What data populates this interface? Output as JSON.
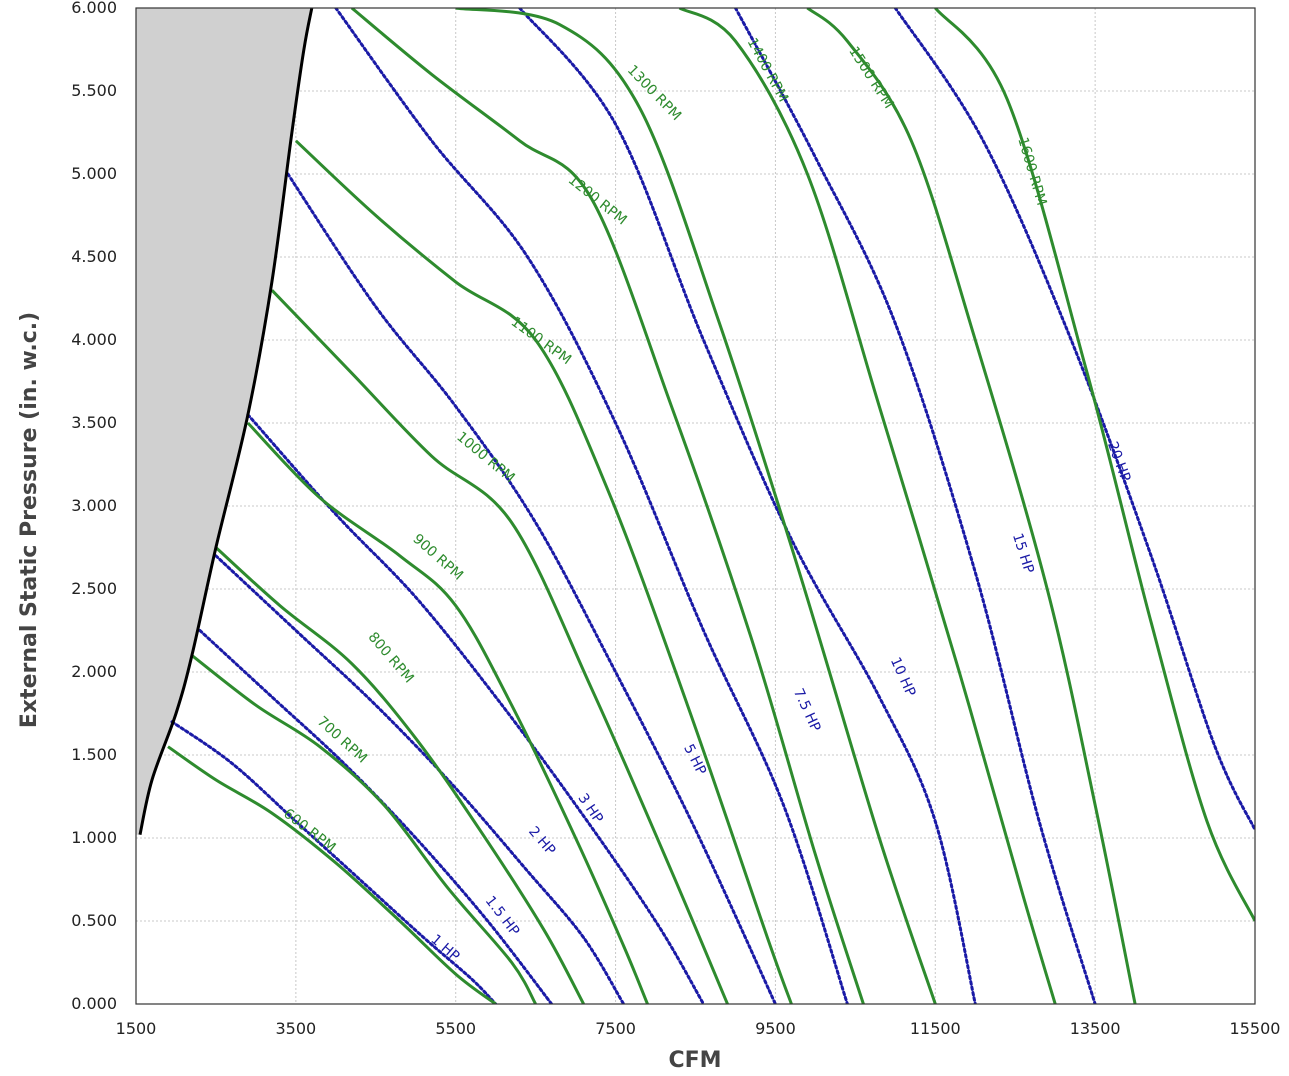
{
  "chart_data": {
    "type": "line",
    "title": "",
    "xlabel": "CFM",
    "ylabel": "External Static Pressure (in. w.c.)",
    "xlim": [
      1500,
      15500
    ],
    "ylim": [
      0,
      6
    ],
    "grid": true,
    "x_ticks": [
      "1500",
      "3500",
      "5500",
      "7500",
      "9500",
      "11500",
      "13500",
      "15500"
    ],
    "y_ticks": [
      "0.000",
      "0.500",
      "1.000",
      "1.500",
      "2.000",
      "2.500",
      "3.000",
      "3.500",
      "4.000",
      "4.500",
      "5.000",
      "5.500",
      "6.000"
    ],
    "colors": {
      "rpm": "#2e8b2e",
      "hp": "#1a1aa6",
      "limit": "#000000",
      "region": "#d0d0d0",
      "grid": "#c8c8c8"
    },
    "limit_curve": [
      [
        1550,
        1.02
      ],
      [
        1700,
        1.35
      ],
      [
        2000,
        1.75
      ],
      [
        2200,
        2.1
      ],
      [
        2500,
        2.75
      ],
      [
        2900,
        3.55
      ],
      [
        3200,
        4.35
      ],
      [
        3450,
        5.25
      ],
      [
        3600,
        5.75
      ],
      [
        3700,
        6.0
      ]
    ],
    "rpm_curves": [
      {
        "label": "600 RPM",
        "points": [
          [
            1900,
            1.55
          ],
          [
            2500,
            1.35
          ],
          [
            3200,
            1.15
          ],
          [
            4000,
            0.85
          ],
          [
            4800,
            0.5
          ],
          [
            5500,
            0.18
          ],
          [
            6000,
            0.0
          ]
        ],
        "label_at": [
          3600,
          1.0
        ]
      },
      {
        "label": "700 RPM",
        "points": [
          [
            2200,
            2.1
          ],
          [
            3000,
            1.8
          ],
          [
            3800,
            1.55
          ],
          [
            4600,
            1.2
          ],
          [
            5400,
            0.7
          ],
          [
            6200,
            0.25
          ],
          [
            6500,
            0.0
          ]
        ],
        "label_at": [
          4000,
          1.55
        ]
      },
      {
        "label": "800 RPM",
        "points": [
          [
            2500,
            2.75
          ],
          [
            3300,
            2.4
          ],
          [
            4200,
            2.05
          ],
          [
            5000,
            1.6
          ],
          [
            5800,
            1.05
          ],
          [
            6600,
            0.45
          ],
          [
            7100,
            0.0
          ]
        ],
        "label_at": [
          4600,
          2.05
        ]
      },
      {
        "label": "900 RPM",
        "points": [
          [
            2900,
            3.5
          ],
          [
            3800,
            3.05
          ],
          [
            4800,
            2.7
          ],
          [
            5500,
            2.4
          ],
          [
            6200,
            1.8
          ],
          [
            7000,
            1.0
          ],
          [
            7600,
            0.35
          ],
          [
            7900,
            0.0
          ]
        ],
        "label_at": [
          5200,
          2.65
        ]
      },
      {
        "label": "1000 RPM",
        "points": [
          [
            3200,
            4.3
          ],
          [
            4200,
            3.8
          ],
          [
            5200,
            3.3
          ],
          [
            6200,
            2.9
          ],
          [
            7200,
            1.9
          ],
          [
            8200,
            0.8
          ],
          [
            8900,
            0.0
          ]
        ],
        "label_at": [
          5800,
          3.25
        ]
      },
      {
        "label": "1100 RPM",
        "points": [
          [
            3500,
            5.2
          ],
          [
            4500,
            4.75
          ],
          [
            5500,
            4.35
          ],
          [
            6500,
            4.0
          ],
          [
            7400,
            3.1
          ],
          [
            8400,
            1.8
          ],
          [
            9400,
            0.4
          ],
          [
            9700,
            0.0
          ]
        ],
        "label_at": [
          6500,
          3.95
        ]
      },
      {
        "label": "1200 RPM",
        "points": [
          [
            4200,
            6.0
          ],
          [
            5200,
            5.6
          ],
          [
            6300,
            5.2
          ],
          [
            7200,
            4.85
          ],
          [
            8200,
            3.6
          ],
          [
            9200,
            2.2
          ],
          [
            10000,
            0.9
          ],
          [
            10600,
            0.0
          ]
        ],
        "label_at": [
          7200,
          4.8
        ]
      },
      {
        "label": "1300 RPM",
        "points": [
          [
            5500,
            6.0
          ],
          [
            6800,
            5.9
          ],
          [
            7800,
            5.4
          ],
          [
            8800,
            4.1
          ],
          [
            9800,
            2.6
          ],
          [
            10800,
            1.0
          ],
          [
            11500,
            0.0
          ]
        ],
        "label_at": [
          7900,
          5.45
        ]
      },
      {
        "label": "1400 RPM",
        "points": [
          [
            8300,
            6.0
          ],
          [
            9000,
            5.8
          ],
          [
            9900,
            5.0
          ],
          [
            10800,
            3.6
          ],
          [
            11800,
            2.0
          ],
          [
            12600,
            0.65
          ],
          [
            13000,
            0.0
          ]
        ],
        "label_at": [
          9300,
          5.6
        ]
      },
      {
        "label": "1500 RPM",
        "points": [
          [
            9900,
            6.0
          ],
          [
            10400,
            5.8
          ],
          [
            11200,
            5.2
          ],
          [
            12000,
            4.0
          ],
          [
            12900,
            2.5
          ],
          [
            13500,
            1.2
          ],
          [
            14000,
            0.0
          ]
        ],
        "label_at": [
          10600,
          5.55
        ]
      },
      {
        "label": "1600 RPM",
        "points": [
          [
            11500,
            6.0
          ],
          [
            12400,
            5.45
          ],
          [
            13400,
            3.8
          ],
          [
            14200,
            2.3
          ],
          [
            14900,
            1.1
          ],
          [
            15500,
            0.5
          ]
        ],
        "label_at": [
          12600,
          5.0
        ]
      }
    ],
    "hp_curves": [
      {
        "label": "1 HP",
        "points": [
          [
            1950,
            1.7
          ],
          [
            2700,
            1.45
          ],
          [
            3500,
            1.1
          ],
          [
            4300,
            0.75
          ],
          [
            5100,
            0.4
          ],
          [
            5700,
            0.15
          ],
          [
            6000,
            0.0
          ]
        ],
        "label_at": [
          5300,
          0.3
        ]
      },
      {
        "label": "1.5 HP",
        "points": [
          [
            2300,
            2.25
          ],
          [
            3200,
            1.85
          ],
          [
            4100,
            1.45
          ],
          [
            5000,
            1.0
          ],
          [
            5900,
            0.5
          ],
          [
            6700,
            0.0
          ]
        ],
        "label_at": [
          6000,
          0.5
        ]
      },
      {
        "label": "2 HP",
        "points": [
          [
            2500,
            2.7
          ],
          [
            3500,
            2.25
          ],
          [
            4500,
            1.8
          ],
          [
            5500,
            1.3
          ],
          [
            6400,
            0.8
          ],
          [
            7100,
            0.4
          ],
          [
            7600,
            0.0
          ]
        ],
        "label_at": [
          6500,
          0.95
        ]
      },
      {
        "label": "3 HP",
        "points": [
          [
            2900,
            3.55
          ],
          [
            4000,
            2.95
          ],
          [
            5000,
            2.45
          ],
          [
            6000,
            1.85
          ],
          [
            7000,
            1.2
          ],
          [
            8000,
            0.5
          ],
          [
            8600,
            0.0
          ]
        ],
        "label_at": [
          7100,
          1.15
        ]
      },
      {
        "label": "5 HP",
        "points": [
          [
            3400,
            5.0
          ],
          [
            4500,
            4.2
          ],
          [
            5500,
            3.6
          ],
          [
            6500,
            2.9
          ],
          [
            7500,
            2.0
          ],
          [
            8500,
            1.05
          ],
          [
            9500,
            0.0
          ]
        ],
        "label_at": [
          8400,
          1.45
        ]
      },
      {
        "label": "7.5 HP",
        "points": [
          [
            4000,
            6.0
          ],
          [
            5200,
            5.2
          ],
          [
            6400,
            4.5
          ],
          [
            7500,
            3.5
          ],
          [
            8600,
            2.25
          ],
          [
            9600,
            1.2
          ],
          [
            10400,
            0.0
          ]
        ],
        "label_at": [
          9800,
          1.75
        ]
      },
      {
        "label": "10 HP",
        "points": [
          [
            6300,
            6.0
          ],
          [
            7500,
            5.3
          ],
          [
            8600,
            4.0
          ],
          [
            9700,
            2.8
          ],
          [
            10800,
            1.85
          ],
          [
            11500,
            1.1
          ],
          [
            12000,
            0.0
          ]
        ],
        "label_at": [
          11000,
          1.95
        ]
      },
      {
        "label": "15 HP",
        "points": [
          [
            9000,
            6.0
          ],
          [
            10000,
            5.1
          ],
          [
            11000,
            4.1
          ],
          [
            12000,
            2.6
          ],
          [
            12800,
            1.1
          ],
          [
            13500,
            0.0
          ]
        ],
        "label_at": [
          12500,
          2.7
        ]
      },
      {
        "label": "20 HP",
        "points": [
          [
            11000,
            6.0
          ],
          [
            12100,
            5.2
          ],
          [
            13200,
            4.0
          ],
          [
            14200,
            2.7
          ],
          [
            15000,
            1.55
          ],
          [
            15500,
            1.05
          ]
        ],
        "label_at": [
          13700,
          3.25
        ]
      }
    ]
  }
}
